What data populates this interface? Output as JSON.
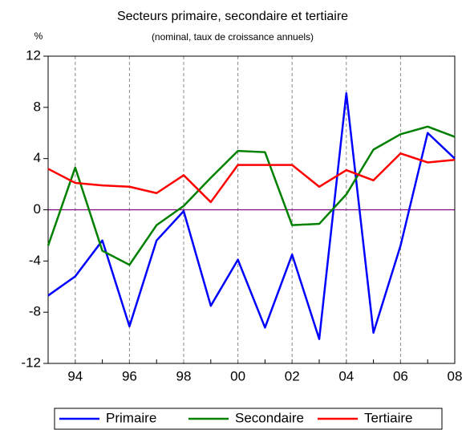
{
  "chart_data": {
    "type": "line",
    "title": "Secteurs primaire, secondaire et tertiaire",
    "subtitle": "(nominal, taux de croissance annuels)",
    "y_unit": "%",
    "categories": [
      null,
      "94",
      null,
      "96",
      null,
      "98",
      null,
      "00",
      null,
      "02",
      null,
      "04",
      null,
      "06",
      null,
      "08"
    ],
    "series": [
      {
        "name": "Primaire",
        "color": "#0000ff",
        "values": [
          -6.7,
          -5.2,
          -2.4,
          -9.1,
          -2.4,
          -0.1,
          -7.5,
          -3.9,
          -9.2,
          -3.5,
          -10.1,
          9.1,
          -9.6,
          -2.8,
          6.0,
          4.0
        ]
      },
      {
        "name": "Secondaire",
        "color": "#008000",
        "values": [
          -2.8,
          3.3,
          -3.2,
          -4.3,
          -1.2,
          0.3,
          2.5,
          4.6,
          4.5,
          -1.2,
          -1.1,
          1.2,
          4.7,
          5.9,
          6.5,
          5.7
        ]
      },
      {
        "name": "Tertiaire",
        "color": "#ff0000",
        "values": [
          3.2,
          2.1,
          1.9,
          1.8,
          1.3,
          2.7,
          0.6,
          3.5,
          3.5,
          3.5,
          1.8,
          3.1,
          2.3,
          4.4,
          3.7,
          3.9
        ]
      }
    ],
    "ylim": [
      -12,
      12
    ],
    "yticks": [
      12,
      8,
      4,
      0,
      -4,
      -8,
      -12
    ],
    "grid": true,
    "zero_line_color": "#800080",
    "legend": "bottom"
  }
}
